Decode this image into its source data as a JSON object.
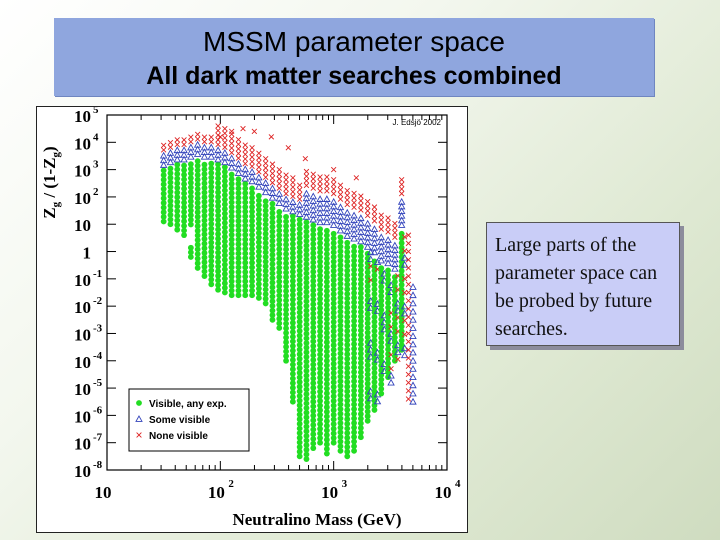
{
  "slide": {
    "title": "MSSM parameter space",
    "subtitle": "All dark matter searches combined",
    "callout": "Large parts of the parameter space can be probed by future searches."
  },
  "chart_data": {
    "type": "scatter",
    "credit": "J. Edsjö 2002",
    "xlabel": "Neutralino Mass (GeV)",
    "ylabel_main": "Z",
    "ylabel_sub": "g",
    "ylabel_mid": " / (1-Z",
    "ylabel_end": ")",
    "x_scale": "log",
    "y_scale": "log",
    "xlim": [
      10,
      10000
    ],
    "ylim": [
      1e-08,
      100000.0
    ],
    "x_ticks": [
      {
        "base": "10",
        "exp": ""
      },
      {
        "base": "10",
        "exp": "2"
      },
      {
        "base": "10",
        "exp": "3"
      },
      {
        "base": "10",
        "exp": "4"
      }
    ],
    "y_ticks": [
      {
        "base": "10",
        "exp": "5"
      },
      {
        "base": "10",
        "exp": "4"
      },
      {
        "base": "10",
        "exp": "3"
      },
      {
        "base": "10",
        "exp": "2"
      },
      {
        "base": "10",
        "exp": ""
      },
      {
        "base": "1",
        "exp": ""
      },
      {
        "base": "10",
        "exp": "-1"
      },
      {
        "base": "10",
        "exp": "-2"
      },
      {
        "base": "10",
        "exp": "-3"
      },
      {
        "base": "10",
        "exp": "-4"
      },
      {
        "base": "10",
        "exp": "-5"
      },
      {
        "base": "10",
        "exp": "-6"
      },
      {
        "base": "10",
        "exp": "-7"
      },
      {
        "base": "10",
        "exp": "-8"
      }
    ],
    "legend_position": "bottom-left",
    "series": [
      {
        "name": "Visible, any exp.",
        "marker": "filled-circle",
        "color": "#22dd22"
      },
      {
        "name": "Some visible",
        "marker": "open-triangle",
        "color": "#3344bb"
      },
      {
        "name": "None visible",
        "marker": "cross",
        "color": "#dd2222"
      }
    ],
    "regions": {
      "note": "log10 values: x = log10(mass/GeV), y = log10(Zg/(1-Zg)); columns of points",
      "green_columns": [
        [
          1.5,
          1.1,
          3.0
        ],
        [
          1.56,
          1.0,
          3.1
        ],
        [
          1.62,
          0.8,
          3.2
        ],
        [
          1.68,
          0.6,
          3.2
        ],
        [
          1.74,
          -0.2,
          3.3
        ],
        [
          1.8,
          -0.6,
          3.4
        ],
        [
          1.86,
          -0.9,
          3.3
        ],
        [
          1.92,
          -1.2,
          3.3
        ],
        [
          1.98,
          -1.4,
          3.2
        ],
        [
          2.04,
          -1.5,
          3.1
        ],
        [
          2.1,
          -1.6,
          2.9
        ],
        [
          2.16,
          -1.6,
          2.7
        ],
        [
          2.22,
          -1.6,
          2.5
        ],
        [
          2.28,
          -1.6,
          2.4
        ],
        [
          2.34,
          -1.7,
          2.2
        ],
        [
          2.4,
          -1.9,
          2.0
        ],
        [
          2.46,
          -2.5,
          1.8
        ],
        [
          2.52,
          -2.8,
          1.6
        ],
        [
          2.58,
          -4.0,
          1.4
        ],
        [
          2.64,
          -5.5,
          1.3
        ],
        [
          2.7,
          -7.5,
          1.2
        ],
        [
          2.76,
          -7.6,
          1.1
        ],
        [
          2.82,
          -7.2,
          1.0
        ],
        [
          2.88,
          -7.0,
          0.9
        ],
        [
          2.94,
          -7.4,
          0.9
        ],
        [
          3.0,
          -7.0,
          0.8
        ],
        [
          3.06,
          -7.3,
          0.6
        ],
        [
          3.12,
          -7.5,
          0.4
        ],
        [
          3.18,
          -7.3,
          0.3
        ],
        [
          3.24,
          -6.8,
          0.2
        ],
        [
          3.3,
          -6.2,
          0.0
        ],
        [
          3.36,
          -5.8,
          -0.2
        ],
        [
          3.42,
          -5.2,
          -0.5
        ],
        [
          3.48,
          -4.6,
          -0.6
        ],
        [
          3.54,
          -4.0,
          -0.8
        ],
        [
          3.6,
          -3.6,
          0.8
        ]
      ]
    }
  }
}
